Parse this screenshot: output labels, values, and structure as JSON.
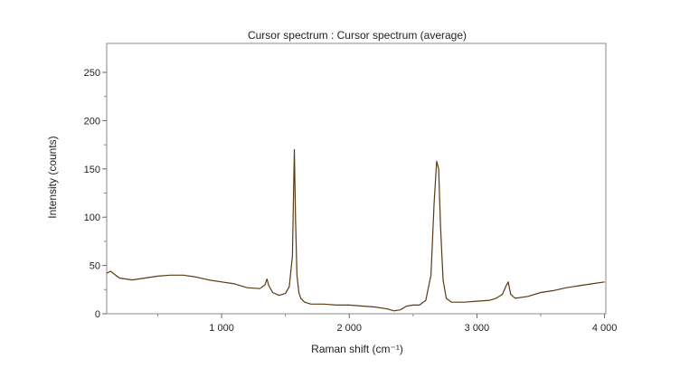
{
  "chart_data": {
    "type": "line",
    "title": "Cursor spectrum : Cursor spectrum (average)",
    "xlabel": "Raman shift (cm⁻¹)",
    "ylabel": "Intensity (counts)",
    "xlim": [
      100,
      4010
    ],
    "ylim": [
      0,
      280
    ],
    "x_ticks": [
      1000,
      2000,
      3000,
      4000
    ],
    "x_tick_labels": [
      "1 000",
      "2 000",
      "3 000",
      "4 000"
    ],
    "x_minor_ticks": [
      500,
      1500,
      2500,
      3500
    ],
    "y_ticks": [
      0,
      50,
      100,
      150,
      200,
      250
    ],
    "y_tick_labels": [
      "0",
      "50",
      "100",
      "150",
      "200",
      "250"
    ],
    "grid": false,
    "legend": false,
    "series": [
      {
        "color": "#5a3a12",
        "x": [
          100,
          130,
          200,
          300,
          400,
          500,
          600,
          700,
          800,
          900,
          1000,
          1100,
          1200,
          1300,
          1340,
          1355,
          1370,
          1400,
          1450,
          1500,
          1530,
          1555,
          1570,
          1580,
          1590,
          1605,
          1620,
          1650,
          1700,
          1800,
          1900,
          2000,
          2100,
          2200,
          2300,
          2350,
          2400,
          2450,
          2500,
          2550,
          2600,
          2640,
          2665,
          2685,
          2700,
          2715,
          2735,
          2760,
          2800,
          2850,
          2900,
          3000,
          3100,
          3150,
          3200,
          3225,
          3245,
          3265,
          3300,
          3400,
          3500,
          3600,
          3700,
          3800,
          3900,
          4000
        ],
        "y": [
          42,
          44,
          37,
          35,
          37,
          39,
          40,
          40,
          38,
          35,
          33,
          31,
          27,
          26,
          30,
          36,
          29,
          22,
          19,
          21,
          28,
          60,
          170,
          95,
          40,
          22,
          16,
          12,
          10,
          10,
          9,
          9,
          8,
          7,
          5,
          3,
          4,
          8,
          9,
          9,
          14,
          40,
          115,
          158,
          150,
          90,
          35,
          16,
          12,
          12,
          12,
          13,
          14,
          16,
          20,
          28,
          33,
          20,
          16,
          18,
          22,
          24,
          27,
          29,
          31,
          33
        ]
      }
    ]
  }
}
